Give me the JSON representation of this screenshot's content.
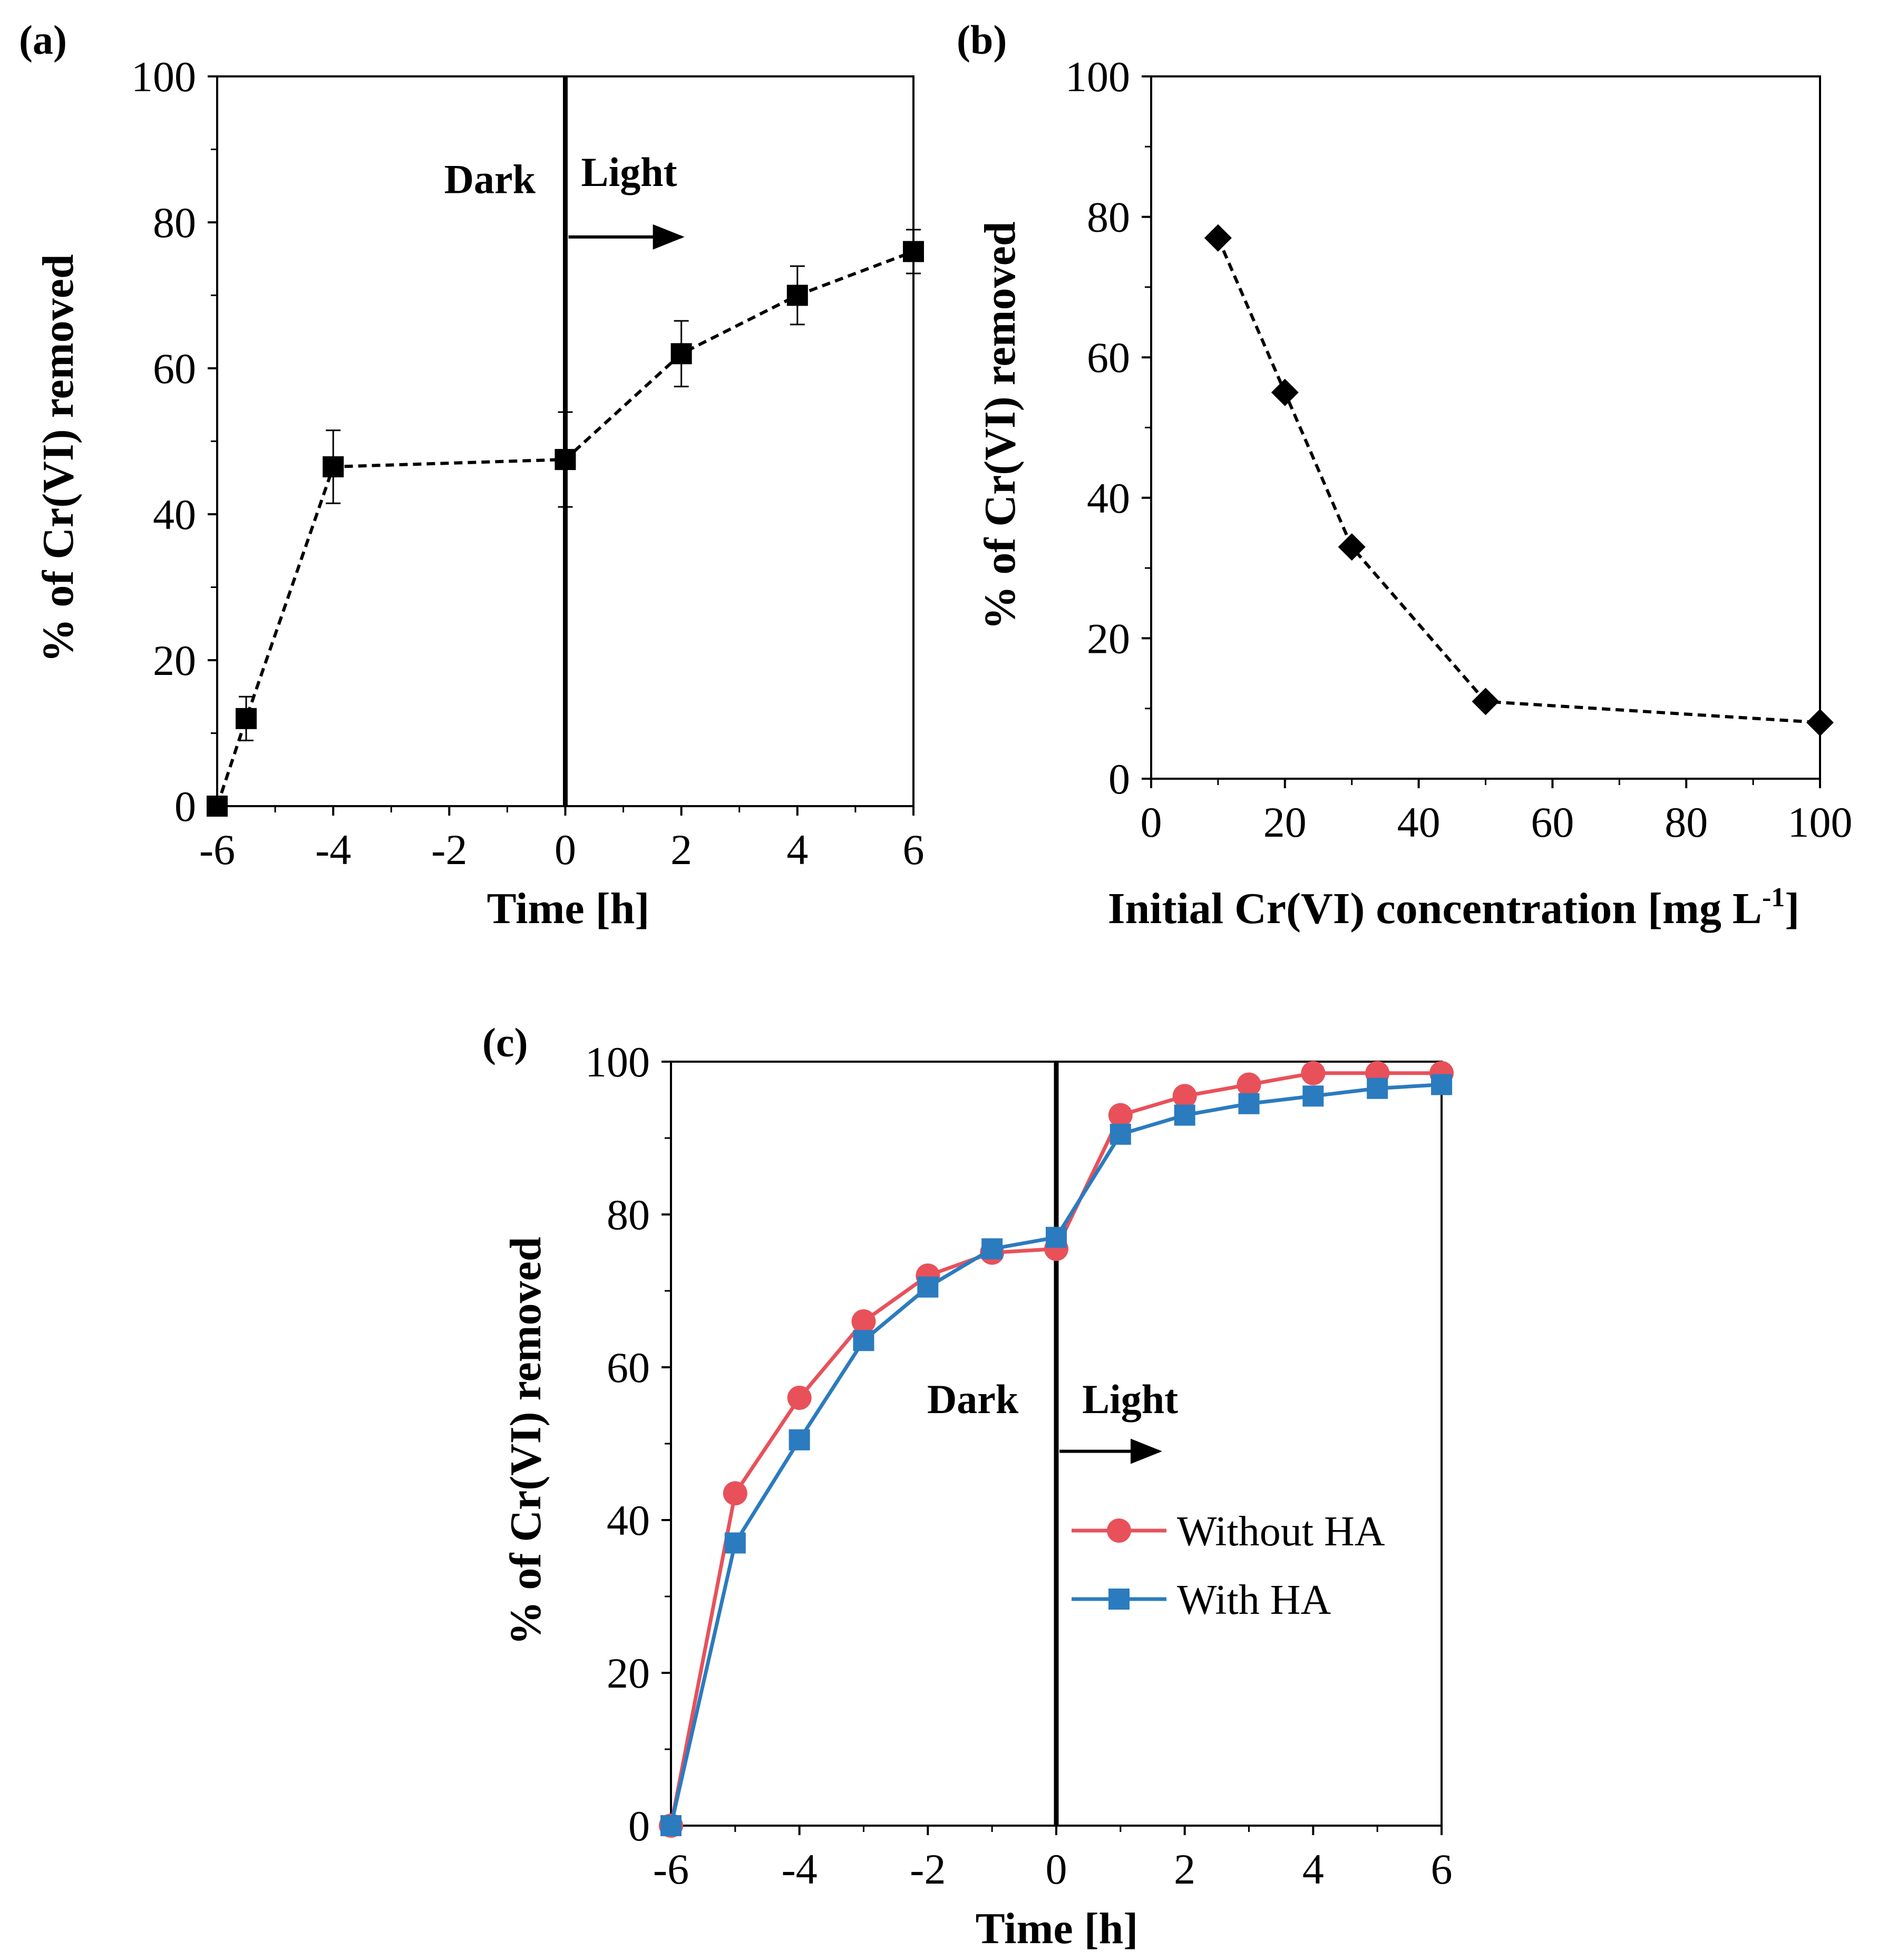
{
  "chart_data": [
    {
      "type": "line",
      "panel_label": "(a)",
      "title": "",
      "xlabel": "Time [h]",
      "ylabel": "% of Cr(VI) removed",
      "xlim": [
        -6,
        6
      ],
      "ylim": [
        0,
        100
      ],
      "xticks": [
        -6,
        -4,
        -2,
        0,
        2,
        4,
        6
      ],
      "yticks": [
        0,
        20,
        40,
        60,
        80,
        100
      ],
      "grid": false,
      "divider_x": 0,
      "annotations": [
        {
          "text": "Dark",
          "x": -1.3,
          "y": 84
        },
        {
          "text": "Light",
          "x": 1.1,
          "y": 85
        },
        {
          "text": "",
          "arrow_from": [
            0,
            78
          ],
          "arrow_to": [
            2,
            78
          ]
        }
      ],
      "series": [
        {
          "name": "",
          "marker": "square",
          "line": "dashed",
          "color": "#000000",
          "x": [
            -6,
            -5.5,
            -4,
            0,
            2,
            4,
            6
          ],
          "values": [
            0,
            12,
            46.5,
            47.5,
            62,
            70,
            76
          ],
          "errors": [
            0,
            3,
            5,
            6.5,
            4.5,
            4,
            3
          ]
        }
      ]
    },
    {
      "type": "line",
      "panel_label": "(b)",
      "title": "",
      "xlabel": "Initial Cr(VI) concentration [mg L",
      "xlabel_sup": "-1",
      "xlabel_end": "]",
      "ylabel": "% of Cr(VI) removed",
      "xlim": [
        0,
        100
      ],
      "ylim": [
        0,
        100
      ],
      "xticks": [
        0,
        20,
        40,
        60,
        80,
        100
      ],
      "yticks": [
        0,
        20,
        40,
        60,
        80,
        100
      ],
      "grid": false,
      "series": [
        {
          "name": "",
          "marker": "diamond",
          "line": "dashed",
          "color": "#000000",
          "x": [
            10,
            20,
            30,
            50,
            100
          ],
          "values": [
            77,
            55,
            33,
            11,
            8
          ]
        }
      ]
    },
    {
      "type": "line",
      "panel_label": "(c)",
      "title": "",
      "xlabel": "Time [h]",
      "ylabel": "% of Cr(VI) removed",
      "xlim": [
        -6,
        6
      ],
      "ylim": [
        0,
        100
      ],
      "xticks": [
        -6,
        -4,
        -2,
        0,
        2,
        4,
        6
      ],
      "yticks": [
        0,
        20,
        40,
        60,
        80,
        100
      ],
      "grid": false,
      "divider_x": 0,
      "legend_position": "bottom-right",
      "annotations": [
        {
          "text": "Dark",
          "x": -1.3,
          "y": 54
        },
        {
          "text": "Light",
          "x": 1.15,
          "y": 54
        },
        {
          "text": "",
          "arrow_from": [
            0,
            49
          ],
          "arrow_to": [
            1.6,
            49
          ]
        }
      ],
      "series": [
        {
          "name": "Without HA",
          "marker": "circle",
          "line": "solid",
          "color": "#e8515a",
          "x": [
            -6,
            -5,
            -4,
            -3,
            -2,
            -1,
            0,
            1,
            2,
            3,
            4,
            5,
            6
          ],
          "values": [
            0,
            43.5,
            56,
            66,
            72,
            75,
            75.5,
            93,
            95.5,
            97,
            98.5,
            98.5,
            98.5
          ]
        },
        {
          "name": "With HA",
          "marker": "square",
          "line": "solid",
          "color": "#2b7bbf",
          "x": [
            -6,
            -5,
            -4,
            -3,
            -2,
            -1,
            0,
            1,
            2,
            3,
            4,
            5,
            6
          ],
          "values": [
            0,
            37,
            50.5,
            63.5,
            70.5,
            75.5,
            77,
            90.5,
            93,
            94.5,
            95.5,
            96.5,
            97
          ]
        }
      ]
    }
  ]
}
